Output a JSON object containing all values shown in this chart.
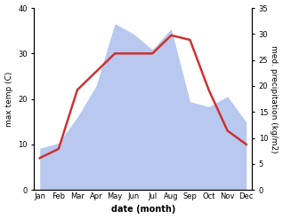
{
  "months": [
    "Jan",
    "Feb",
    "Mar",
    "Apr",
    "May",
    "Jun",
    "Jul",
    "Aug",
    "Sep",
    "Oct",
    "Nov",
    "Dec"
  ],
  "max_temp": [
    7,
    9,
    22,
    26,
    30,
    30,
    30,
    34,
    33,
    22,
    13,
    10
  ],
  "precipitation": [
    8,
    9,
    14,
    20,
    32,
    30,
    27,
    31,
    17,
    16,
    18,
    13
  ],
  "temp_color": "#cc3333",
  "precip_color": "#b8c8ee",
  "temp_ylim": [
    0,
    40
  ],
  "precip_ylim": [
    0,
    35
  ],
  "temp_yticks": [
    0,
    10,
    20,
    30,
    40
  ],
  "precip_yticks": [
    0,
    5,
    10,
    15,
    20,
    25,
    30,
    35
  ],
  "xlabel": "date (month)",
  "ylabel_left": "max temp (C)",
  "ylabel_right": "med. precipitation (kg/m2)",
  "fig_width": 3.18,
  "fig_height": 2.47,
  "dpi": 100
}
